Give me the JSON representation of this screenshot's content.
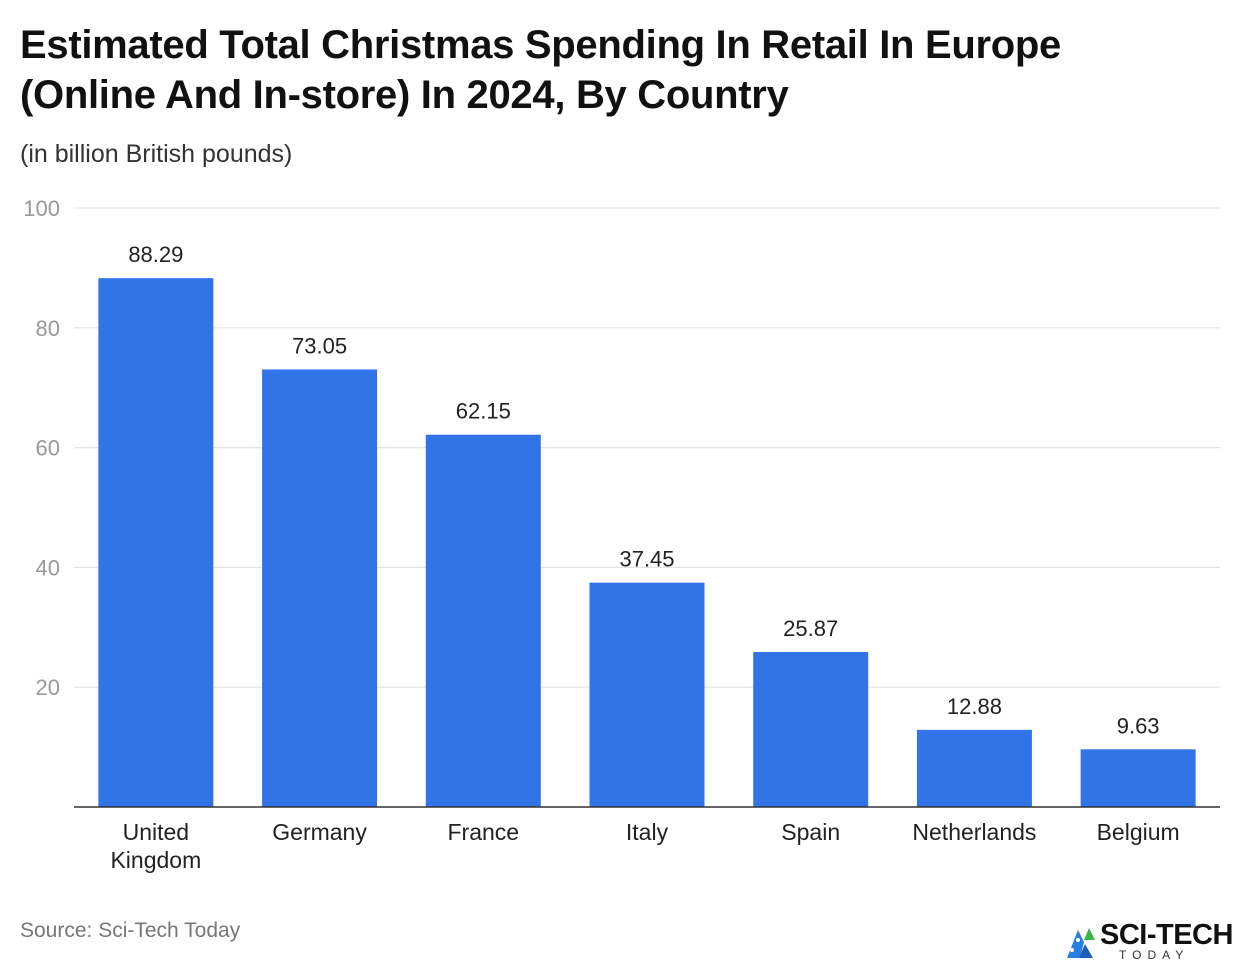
{
  "chart_data": {
    "type": "bar",
    "title": "Estimated Total Christmas Spending In Retail In Europe (Online And In-store) In 2024, By Country",
    "subtitle": "(in billion British pounds)",
    "categories": [
      "United Kingdom",
      "Germany",
      "France",
      "Italy",
      "Spain",
      "Netherlands",
      "Belgium"
    ],
    "category_lines": [
      [
        "United",
        "Kingdom"
      ],
      [
        "Germany"
      ],
      [
        "France"
      ],
      [
        "Italy"
      ],
      [
        "Spain"
      ],
      [
        "Netherlands"
      ],
      [
        "Belgium"
      ]
    ],
    "values": [
      88.29,
      73.05,
      62.15,
      37.45,
      25.87,
      12.88,
      9.63
    ],
    "value_labels": [
      "88.29",
      "73.05",
      "62.15",
      "37.45",
      "25.87",
      "12.88",
      "9.63"
    ],
    "ylim": [
      0,
      100
    ],
    "yticks": [
      20,
      40,
      60,
      80,
      100
    ],
    "ytick_labels": [
      "20",
      "40",
      "60",
      "80",
      "100"
    ],
    "xlabel": "",
    "ylabel": "",
    "grid": true,
    "legend": "none",
    "bar_color": "#3174e7"
  },
  "footer": {
    "source": "Source: Sci-Tech Today",
    "logo_text": "SCI-TECH",
    "logo_subtext": "TODAY"
  },
  "colors": {
    "bar": "#3174e7",
    "grid": "#e3e3e3",
    "axis": "#333333",
    "tick_label": "#999999",
    "logo_accent": "#2a7de1",
    "logo_green": "#3cb44b"
  },
  "icons": {
    "logo": "sci-tech-logo-icon"
  }
}
